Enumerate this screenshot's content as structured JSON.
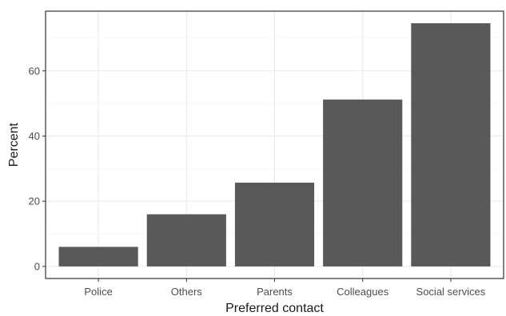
{
  "chart_data": {
    "type": "bar",
    "title": "",
    "xlabel": "Preferred contact",
    "ylabel": "Percent",
    "categories": [
      "Police",
      "Others",
      "Parents",
      "Colleagues",
      "Social services"
    ],
    "values": [
      6,
      16,
      25.7,
      51.2,
      74.6
    ],
    "ylim": [
      -3.7,
      78.3
    ],
    "yticks": [
      0,
      20,
      40,
      60
    ],
    "ytick_labels": [
      "0",
      "20",
      "40",
      "60"
    ],
    "grid": true,
    "legend": "none",
    "bar_color": "#595959",
    "panel_border_color": "#333333",
    "grid_color": "#ebebeb"
  }
}
